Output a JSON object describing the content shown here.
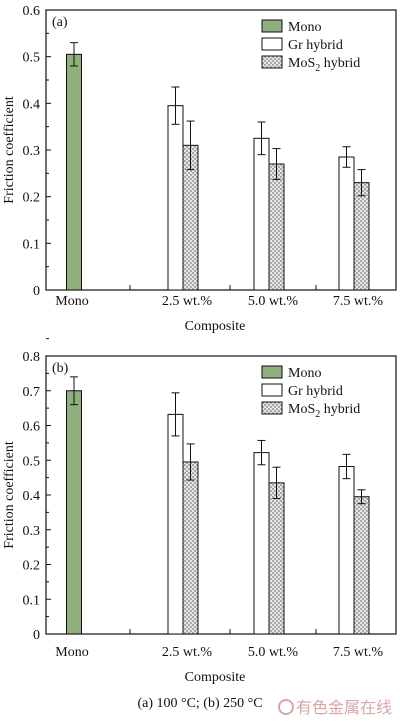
{
  "caption": "(a) 100 °C;  (b) 250 °C",
  "watermark": "有色金属在线",
  "colors": {
    "mono": "#8faf7d",
    "gr": "#ffffff",
    "mos2": "#d9d9d9",
    "axis": "#111111"
  },
  "chart_data": [
    {
      "type": "bar",
      "panel_label": "(a)",
      "categories": [
        "Mono",
        "2.5 wt.%",
        "5.0 wt.%",
        "7.5 wt.%"
      ],
      "xlabel": "Composite",
      "ylabel": "Friction coefficient",
      "ylim": [
        0,
        0.6
      ],
      "yticks": [
        "0",
        "0.1",
        "0.2",
        "0.3",
        "0.4",
        "0.5",
        "0.6"
      ],
      "legend_position": "top-right",
      "series": [
        {
          "name": "Mono",
          "fill": "mono",
          "values": [
            0.505,
            null,
            null,
            null
          ],
          "errors": [
            0.025,
            null,
            null,
            null
          ]
        },
        {
          "name": "Gr hybrid",
          "fill": "gr",
          "values": [
            null,
            0.395,
            0.325,
            0.285
          ],
          "errors": [
            null,
            0.04,
            0.035,
            0.022
          ]
        },
        {
          "name": "MoS2 hybrid",
          "fill": "mos2",
          "values": [
            null,
            0.31,
            0.27,
            0.23
          ],
          "errors": [
            null,
            0.052,
            0.033,
            0.028
          ]
        }
      ]
    },
    {
      "type": "bar",
      "panel_label": "(b)",
      "categories": [
        "Mono",
        "2.5 wt.%",
        "5.0 wt.%",
        "7.5 wt.%"
      ],
      "xlabel": "Composite",
      "ylabel": "Friction coefficient",
      "ylim": [
        0,
        0.8
      ],
      "yticks": [
        "0",
        "0.1",
        "0.2",
        "0.3",
        "0.4",
        "0.5",
        "0.6",
        "0.7",
        "0.8"
      ],
      "legend_position": "top-right",
      "series": [
        {
          "name": "Mono",
          "fill": "mono",
          "values": [
            0.7,
            null,
            null,
            null
          ],
          "errors": [
            0.04,
            null,
            null,
            null
          ]
        },
        {
          "name": "Gr hybrid",
          "fill": "gr",
          "values": [
            null,
            0.632,
            0.522,
            0.482
          ],
          "errors": [
            null,
            0.062,
            0.035,
            0.035
          ]
        },
        {
          "name": "MoS2 hybrid",
          "fill": "mos2",
          "values": [
            null,
            0.495,
            0.435,
            0.395
          ],
          "errors": [
            null,
            0.052,
            0.045,
            0.02
          ]
        }
      ]
    }
  ]
}
